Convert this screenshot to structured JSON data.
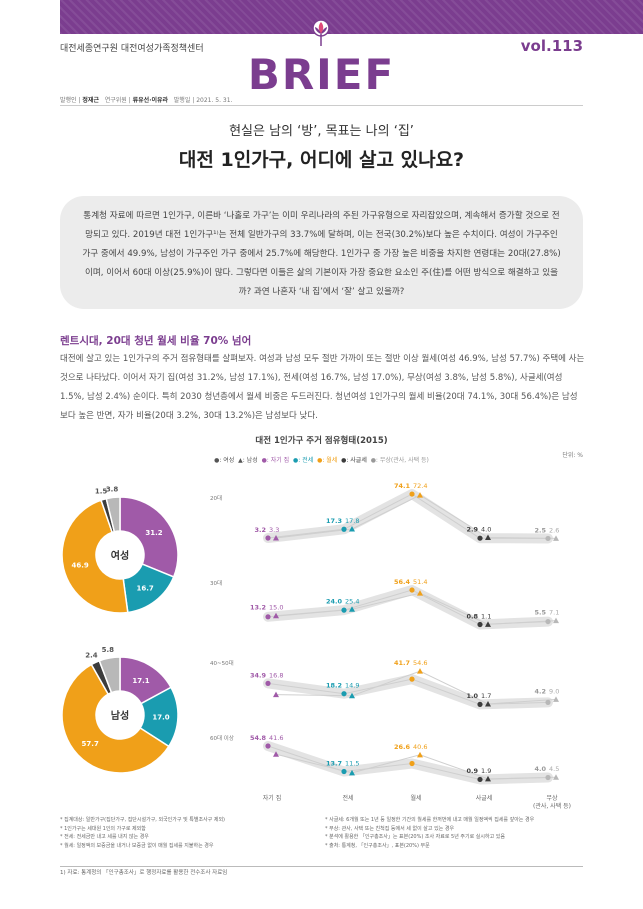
{
  "header": {
    "org": "대전세종연구원 대전여성가족정책센터",
    "volume": "vol.113",
    "logo": "BRIEF",
    "publisher_label": "발행인",
    "publisher": "정재근",
    "researcher_label": "연구위원",
    "researchers": "류유선·이유라",
    "date_label": "발행일",
    "date": "2021. 5. 31."
  },
  "article": {
    "subtitle": "현실은 남의 ‘방’, 목표는 나의 ‘집’",
    "title": "대전 1인가구, 어디에 살고 있나요?",
    "abstract": "통계청 자료에 따르면 1인가구, 이른바 ‘나홀로 가구’는 이미 우리나라의 주된 가구유형으로 자리잡았으며, 계속해서 증가할 것으로 전망되고 있다. 2019년 대전 1인가구¹⁾는 전체 일반가구의 33.7%에 달하며, 이는 전국(30.2%)보다 높은 수치이다. 여성이 가구주인 가구 중에서 49.9%, 남성이 가구주인 가구 중에서 25.7%에 해당한다. 1인가구 중 가장 높은 비중을 차지한 연령대는 20대(27.8%)이며, 이어서 60대 이상(25.9%)이 많다. 그렇다면 이들은 삶의 기본이자 가장 중요한 요소인 주(住)를 어떤 방식으로 해결하고 있을까? 과연 나혼자 ‘내 집’에서 ‘잘’ 살고 있을까?",
    "section_head": "렌트시대, 20대 청년 월세 비율 70% 넘어",
    "section_body": "대전에 살고 있는 1인가구의 주거 점유형태를 살펴보자. 여성과 남성 모두 절반 가까이 또는 절반 이상 월세(여성 46.9%, 남성 57.7%) 주택에 사는 것으로 나타났다. 이어서 자기 집(여성 31.2%, 남성 17.1%), 전세(여성 16.7%, 남성 17.0%), 무상(여성 3.8%, 남성 5.8%), 사글세(여성 1.5%, 남성 2.4%) 순이다. 특히 2030 청년층에서 월세 비중은 두드러진다. 청년여성 1인가구의 월세 비율(20대 74.1%, 30대 56.4%)은 남성보다 높은 반면, 자가 비율(20대 3.2%, 30대 13.2%)은 남성보다 낮다."
  },
  "chart_data": {
    "type": "line",
    "title": "대전 1인가구 주거 점유형태(2015)",
    "unit": "단위: %",
    "legend": [
      "●: 여성",
      "▲: 남성",
      "●: 자기 집",
      "●: 전세",
      "●: 월세",
      "●: 사글세",
      "●: 무상(관사, 사택 등)"
    ],
    "categories": [
      "자기 집",
      "전세",
      "월세",
      "사글세",
      "무상\n(관사, 사택 등)"
    ],
    "category_colors": [
      "#a05aa8",
      "#1a9cb0",
      "#f0a019",
      "#3c3c3c",
      "#b8b8b8"
    ],
    "age_groups": [
      {
        "label": "20대",
        "female": [
          3.2,
          17.3,
          74.1,
          2.9,
          2.5
        ],
        "male": [
          3.3,
          17.8,
          72.4,
          4.0,
          2.6
        ]
      },
      {
        "label": "30대",
        "female": [
          13.2,
          24.0,
          56.4,
          0.8,
          5.5
        ],
        "male": [
          15.0,
          25.4,
          51.4,
          1.1,
          7.1
        ]
      },
      {
        "label": "40~50대",
        "female": [
          34.9,
          18.2,
          41.7,
          1.0,
          4.2
        ],
        "male": [
          16.8,
          14.9,
          54.6,
          1.7,
          9.0
        ]
      },
      {
        "label": "60대 이상",
        "female": [
          54.8,
          13.7,
          26.6,
          0.9,
          4.0
        ],
        "male": [
          41.6,
          11.5,
          40.6,
          1.9,
          4.5
        ]
      }
    ],
    "donuts": [
      {
        "label": "여성",
        "order": [
          "자기 집",
          "전세",
          "월세",
          "사글세",
          "무상"
        ],
        "values": [
          31.2,
          16.7,
          46.9,
          1.5,
          3.8
        ]
      },
      {
        "label": "남성",
        "order": [
          "자기 집",
          "전세",
          "월세",
          "사글세",
          "무상"
        ],
        "values": [
          17.1,
          17.0,
          57.7,
          2.4,
          5.8
        ]
      }
    ]
  },
  "notes": {
    "left": [
      "* 집계대상: 일반가구(집단가구, 집단시설가구, 외국인가구 및 특별조사구 제외)",
      "* 1인가구는 세대원 1인의 가구로 제외함",
      "* 전세: 전세금만 내고 세를 내지 않는 경우",
      "* 월세: 일정액의 보증금을 내거나 보증금 없이 매월 집세를 지불하는 경우"
    ],
    "right": [
      "* 사글세: 6개월 또는 1년 등 일정한 기간의 월세를 한꺼번에 내고 매월 일정액씩 집세를 갚아는 경우",
      "* 무상: 관사, 사택 또는 친척집 등에서 세 없이 살고 있는 경우",
      "* 분석에 활용한 「인구총조사」는 표본(20%) 조사 자료로 5년 주기로 실시하고 있음",
      "* 출처: 통계청, 「인구총조사」, 표본(20%) 부문"
    ],
    "footnote": "1) 자료: 통계청의 「인구총조사」로 행정자료를 활용한 전수조사 자료임"
  }
}
